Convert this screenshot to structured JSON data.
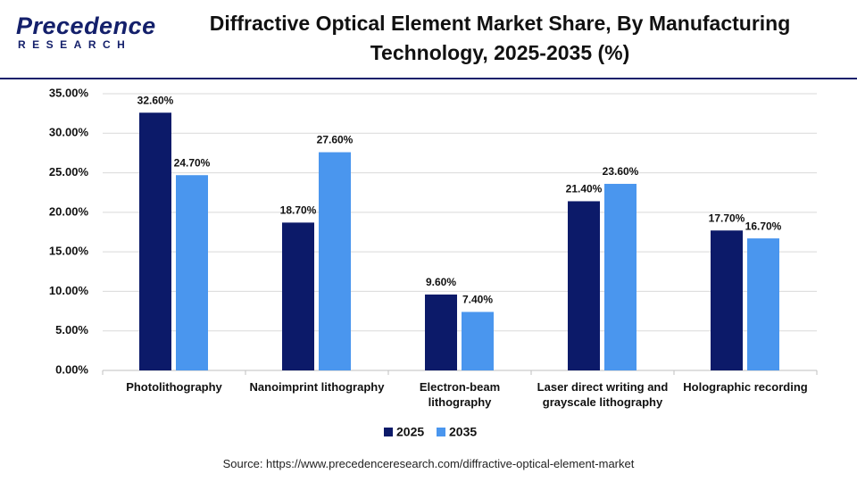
{
  "brand": {
    "name": "Precedence",
    "sub": "RESEARCH"
  },
  "chart_data": {
    "type": "bar",
    "title": "Diffractive Optical Element Market Share, By Manufacturing Technology, 2025-2035 (%)",
    "categories": [
      "Photolithography",
      "Nanoimprint lithography",
      "Electron-beam lithography",
      "Laser direct writing and grayscale lithography",
      "Holographic recording"
    ],
    "series": [
      {
        "name": "2025",
        "color": "#0c1a69",
        "values": [
          32.6,
          18.7,
          9.6,
          21.4,
          17.7
        ],
        "value_labels": [
          "32.60%",
          "18.70%",
          "9.60%",
          "21.40%",
          "17.70%"
        ]
      },
      {
        "name": "2035",
        "color": "#4a96ee",
        "values": [
          24.7,
          27.6,
          7.4,
          23.6,
          16.7
        ],
        "value_labels": [
          "24.70%",
          "27.60%",
          "7.40%",
          "23.60%",
          "16.70%"
        ]
      }
    ],
    "ylim": [
      0,
      35
    ],
    "yticks": [
      {
        "value": 0,
        "label": "0.00%"
      },
      {
        "value": 5,
        "label": "5.00%"
      },
      {
        "value": 10,
        "label": "10.00%"
      },
      {
        "value": 15,
        "label": "15.00%"
      },
      {
        "value": 20,
        "label": "20.00%"
      },
      {
        "value": 25,
        "label": "25.00%"
      },
      {
        "value": 30,
        "label": "30.00%"
      },
      {
        "value": 35,
        "label": "35.00%"
      }
    ],
    "grid": true,
    "legend": "bottom",
    "source": "Source: https://www.precedenceresearch.com/diffractive-optical-element-market"
  }
}
